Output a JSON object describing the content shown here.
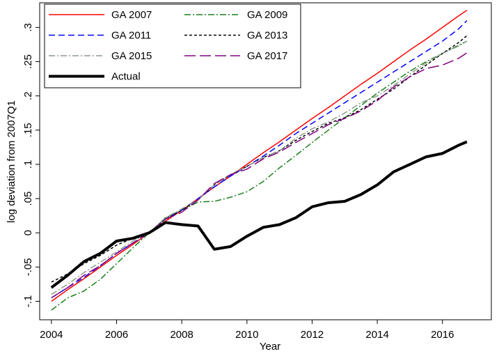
{
  "chart_data": {
    "type": "line",
    "xlabel": "Year",
    "ylabel": "log deviation from 2007Q1",
    "x": [
      2004,
      2004.5,
      2005,
      2005.5,
      2006,
      2006.5,
      2007,
      2007.5,
      2008,
      2008.5,
      2009,
      2009.5,
      2010,
      2010.5,
      2011,
      2011.5,
      2012,
      2012.5,
      2013,
      2013.5,
      2014,
      2014.5,
      2015,
      2015.5,
      2016,
      2016.5,
      2016.75
    ],
    "xlim": [
      2003.64,
      2017.5
    ],
    "xticks": [
      2004,
      2006,
      2008,
      2010,
      2012,
      2014,
      2016
    ],
    "ylim": [
      -0.127,
      0.336
    ],
    "yticks": [
      {
        "value": -0.1,
        "label": "-.1"
      },
      {
        "value": -0.05,
        "label": "-.05"
      },
      0,
      {
        "value": 0.05,
        "label": ".05"
      },
      {
        "value": 0.1,
        "label": ".1"
      },
      {
        "value": 0.15,
        "label": ".15"
      },
      {
        "value": 0.2,
        "label": ".2"
      },
      {
        "value": 0.25,
        "label": ".25"
      },
      {
        "value": 0.3,
        "label": ".3"
      }
    ],
    "grid": false,
    "legend": "top-left",
    "series": [
      {
        "name": "GA 2007",
        "color": "#ff0000",
        "style": "solid",
        "values": [
          -0.1,
          -0.083,
          -0.067,
          -0.05,
          -0.033,
          -0.017,
          0,
          0.017,
          0.033,
          0.05,
          0.067,
          0.083,
          0.1,
          0.117,
          0.133,
          0.15,
          0.167,
          0.183,
          0.2,
          0.217,
          0.233,
          0.25,
          0.267,
          0.283,
          0.3,
          0.317,
          0.325
        ]
      },
      {
        "name": "GA 2009",
        "color": "#1a7f1a",
        "style": "dashdot",
        "values": [
          -0.113,
          -0.095,
          -0.085,
          -0.068,
          -0.045,
          -0.022,
          0,
          0.022,
          0.033,
          0.045,
          0.046,
          0.052,
          0.06,
          0.075,
          0.095,
          0.113,
          0.132,
          0.15,
          0.168,
          0.186,
          0.204,
          0.22,
          0.236,
          0.25,
          0.262,
          0.274,
          0.28
        ]
      },
      {
        "name": "GA 2011",
        "color": "#0000ff",
        "style": "dash",
        "values": [
          -0.095,
          -0.08,
          -0.065,
          -0.048,
          -0.03,
          -0.015,
          0,
          0.02,
          0.033,
          0.05,
          0.067,
          0.083,
          0.097,
          0.112,
          0.128,
          0.145,
          0.16,
          0.175,
          0.19,
          0.205,
          0.22,
          0.235,
          0.25,
          0.265,
          0.28,
          0.298,
          0.31
        ]
      },
      {
        "name": "GA 2013",
        "color": "#000000",
        "style": "shortdash",
        "values": [
          -0.072,
          -0.06,
          -0.045,
          -0.033,
          -0.018,
          -0.008,
          0,
          0.02,
          0.033,
          0.048,
          0.07,
          0.085,
          0.097,
          0.11,
          0.12,
          0.135,
          0.148,
          0.16,
          0.168,
          0.18,
          0.195,
          0.21,
          0.228,
          0.245,
          0.262,
          0.278,
          0.288
        ]
      },
      {
        "name": "GA 2015",
        "color": "#8c9a8c",
        "style": "dashdot",
        "values": [
          -0.09,
          -0.075,
          -0.058,
          -0.043,
          -0.028,
          -0.012,
          0,
          0.022,
          0.035,
          0.048,
          0.07,
          0.085,
          0.097,
          0.11,
          0.12,
          0.138,
          0.152,
          0.162,
          0.175,
          0.19,
          0.2,
          0.215,
          0.232,
          0.248,
          0.262,
          0.273,
          0.28
        ]
      },
      {
        "name": "GA 2017",
        "color": "#800080",
        "style": "longdash",
        "values": [
          -0.095,
          -0.08,
          -0.062,
          -0.048,
          -0.03,
          -0.015,
          0,
          0.02,
          0.03,
          0.048,
          0.072,
          0.085,
          0.093,
          0.108,
          0.118,
          0.132,
          0.145,
          0.158,
          0.167,
          0.178,
          0.193,
          0.213,
          0.228,
          0.24,
          0.245,
          0.255,
          0.263
        ]
      },
      {
        "name": "Actual",
        "color": "#000000",
        "style": "thick",
        "values": [
          -0.08,
          -0.062,
          -0.042,
          -0.03,
          -0.012,
          -0.008,
          0,
          0.015,
          0.012,
          0.01,
          -0.024,
          -0.02,
          -0.005,
          0.008,
          0.012,
          0.022,
          0.038,
          0.044,
          0.046,
          0.056,
          0.07,
          0.089,
          0.1,
          0.111,
          0.116,
          0.128,
          0.133
        ]
      }
    ]
  }
}
